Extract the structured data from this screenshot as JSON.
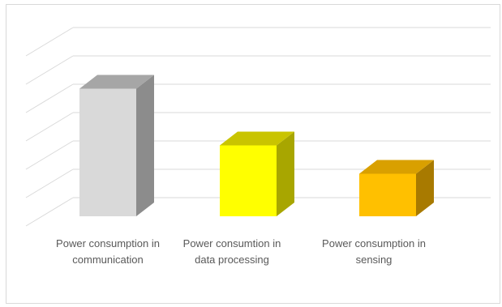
{
  "chart_data": {
    "type": "bar",
    "variant": "3d-column",
    "title": "",
    "xlabel": "",
    "ylabel": "",
    "categories": [
      [
        "Power consumption in",
        "communication"
      ],
      [
        "Power consumtion in",
        "data processing"
      ],
      [
        "Power consumption in",
        "sensing"
      ]
    ],
    "values": [
      4.5,
      2.5,
      1.5
    ],
    "ylim": [
      0,
      6
    ],
    "grid": true,
    "legend": "none",
    "colors": {
      "front": [
        "#d9d9d9",
        "#ffff00",
        "#ffc000"
      ],
      "top": [
        "#a6a6a6",
        "#c9c400",
        "#d9a000"
      ],
      "side": [
        "#8c8c8c",
        "#a8a600",
        "#a87a00"
      ],
      "grid": "#d9d9d9"
    }
  }
}
